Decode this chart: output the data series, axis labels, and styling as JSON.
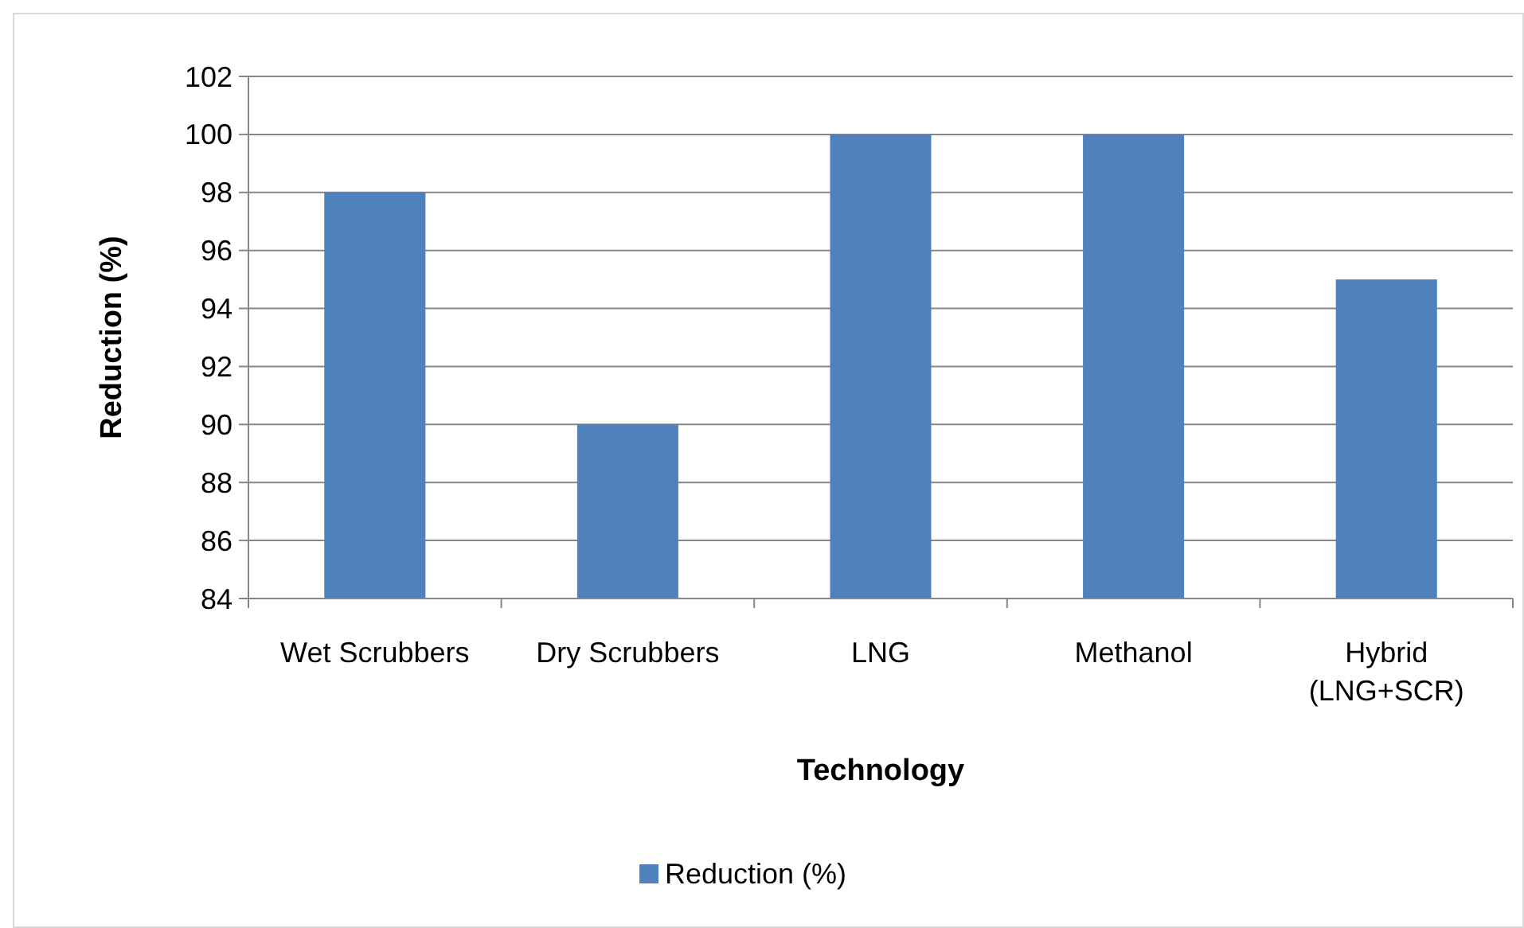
{
  "chart_data": {
    "type": "bar",
    "xlabel": "Technology",
    "ylabel": "Reduction (%)",
    "categories": [
      "Wet Scrubbers",
      "Dry Scrubbers",
      "LNG",
      "Methanol",
      "Hybrid (LNG+SCR)"
    ],
    "series": [
      {
        "name": "Reduction (%)",
        "color": "#4f81bd",
        "values": [
          98,
          90,
          100,
          100,
          95
        ]
      }
    ],
    "ylim": [
      84,
      102
    ],
    "yticks": [
      84,
      86,
      88,
      90,
      92,
      94,
      96,
      98,
      100,
      102
    ],
    "grid": "y",
    "legend": "bottom"
  }
}
